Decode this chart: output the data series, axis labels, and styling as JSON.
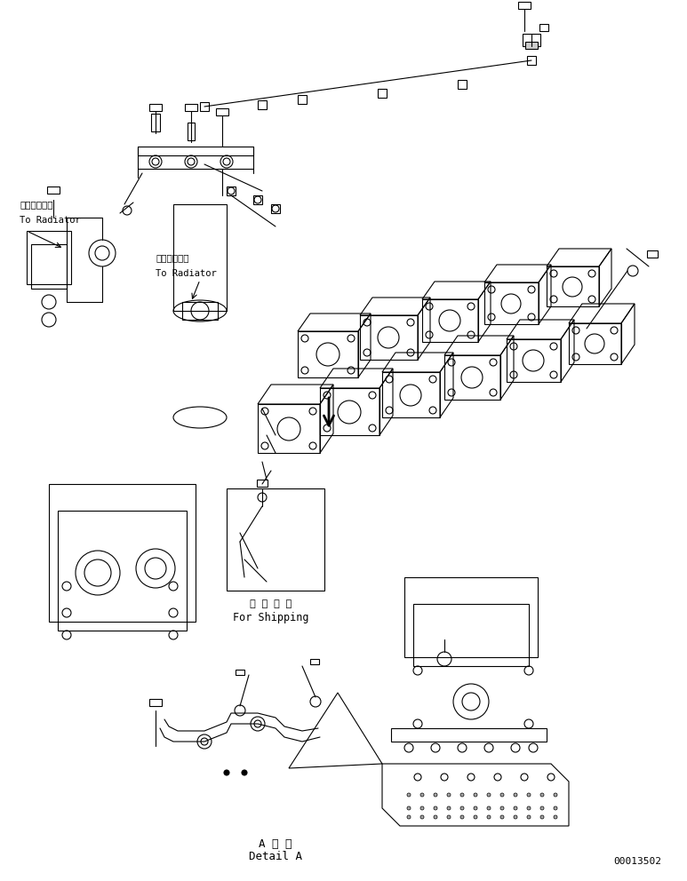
{
  "title": "",
  "background_color": "#ffffff",
  "line_color": "#000000",
  "text_color": "#000000",
  "part_number": "00013502",
  "labels": {
    "to_radiator_1_jp": "ラジェータへ",
    "to_radiator_1_en": "To Radiator",
    "to_radiator_2_jp": "ラジェータへ",
    "to_radiator_2_en": "To Radiator",
    "for_shipping_jp": "運 搬 部 品",
    "for_shipping_en": "For Shipping",
    "detail_a_jp": "A 詳 細",
    "detail_a_en": "Detail A"
  },
  "figsize": [
    7.73,
    9.92
  ],
  "dpi": 100
}
